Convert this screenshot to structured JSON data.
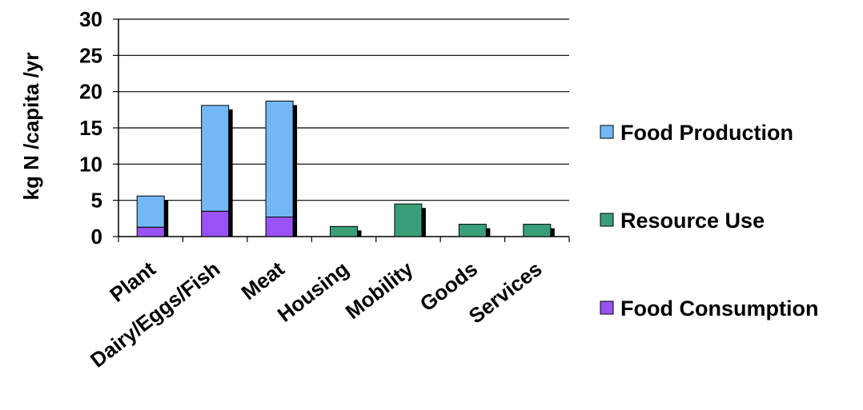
{
  "chart_data": {
    "type": "bar",
    "stacked": true,
    "categories": [
      "Plant",
      "Dairy/Eggs/Fish",
      "Meat",
      "Housing",
      "Mobility",
      "Goods",
      "Services"
    ],
    "series": [
      {
        "name": "Food Consumption",
        "color": "#9a52f5",
        "values": [
          1.3,
          3.5,
          2.7,
          0,
          0,
          0,
          0
        ]
      },
      {
        "name": "Resource Use",
        "color": "#3a9e78",
        "values": [
          0,
          0,
          0,
          1.4,
          4.5,
          1.7,
          1.7
        ]
      },
      {
        "name": "Food Production",
        "color": "#73b8f5",
        "values": [
          4.3,
          14.6,
          16.0,
          0,
          0,
          0,
          0
        ]
      }
    ],
    "legend_order": [
      "Food Production",
      "Resource Use",
      "Food Consumption"
    ],
    "ylabel": "kg N /capita /yr",
    "xlabel": "",
    "title": "",
    "ylim": [
      0,
      30
    ],
    "yticks": [
      0,
      5,
      10,
      15,
      20,
      25,
      30
    ],
    "grid": true,
    "legend_position": "right",
    "shadow": true
  }
}
